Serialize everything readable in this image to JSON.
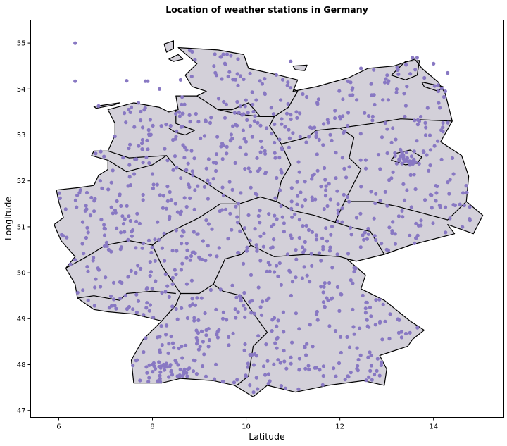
{
  "chart_data": {
    "type": "scatter",
    "title": "Location of weather stations in Germany",
    "xlabel": "Latitude",
    "ylabel": "Longitude",
    "xlim": [
      5.4,
      15.5
    ],
    "ylim": [
      46.85,
      55.5
    ],
    "xticks": [
      6,
      8,
      10,
      12,
      14
    ],
    "yticks": [
      47,
      48,
      49,
      50,
      51,
      52,
      53,
      54,
      55
    ],
    "grid": false,
    "point_color": "#8878c3",
    "land_color": "#d3d0d9",
    "border_color": "#000000",
    "country_outline": [
      [
        5.9,
        51.05
      ],
      [
        6.1,
        51.2
      ],
      [
        6.0,
        51.55
      ],
      [
        5.95,
        51.8
      ],
      [
        6.4,
        51.85
      ],
      [
        6.75,
        51.9
      ],
      [
        6.85,
        52.12
      ],
      [
        7.05,
        52.25
      ],
      [
        7.05,
        52.45
      ],
      [
        6.7,
        52.55
      ],
      [
        6.75,
        52.65
      ],
      [
        7.05,
        52.65
      ],
      [
        7.2,
        53.0
      ],
      [
        7.2,
        53.25
      ],
      [
        7.05,
        53.55
      ],
      [
        7.6,
        53.7
      ],
      [
        8.15,
        53.6
      ],
      [
        8.35,
        53.5
      ],
      [
        8.55,
        53.55
      ],
      [
        8.5,
        53.85
      ],
      [
        8.95,
        53.85
      ],
      [
        9.15,
        53.95
      ],
      [
        8.85,
        54.05
      ],
      [
        8.7,
        54.3
      ],
      [
        8.95,
        54.55
      ],
      [
        8.55,
        54.9
      ],
      [
        9.4,
        54.85
      ],
      [
        9.95,
        54.75
      ],
      [
        10.05,
        54.45
      ],
      [
        10.7,
        54.3
      ],
      [
        11.1,
        54.2
      ],
      [
        11.0,
        53.95
      ],
      [
        11.5,
        54.05
      ],
      [
        12.2,
        54.25
      ],
      [
        12.6,
        54.45
      ],
      [
        13.15,
        54.5
      ],
      [
        13.6,
        54.65
      ],
      [
        13.75,
        54.45
      ],
      [
        14.1,
        54.15
      ],
      [
        14.25,
        53.9
      ],
      [
        14.4,
        53.3
      ],
      [
        14.15,
        52.85
      ],
      [
        14.6,
        52.55
      ],
      [
        14.75,
        52.1
      ],
      [
        14.7,
        51.55
      ],
      [
        15.05,
        51.25
      ],
      [
        14.85,
        50.85
      ],
      [
        14.3,
        51.05
      ],
      [
        14.45,
        50.85
      ],
      [
        13.5,
        50.6
      ],
      [
        12.95,
        50.4
      ],
      [
        12.35,
        50.25
      ],
      [
        12.15,
        50.3
      ],
      [
        12.55,
        49.95
      ],
      [
        12.45,
        49.65
      ],
      [
        12.95,
        49.4
      ],
      [
        13.5,
        48.95
      ],
      [
        13.8,
        48.75
      ],
      [
        13.55,
        48.55
      ],
      [
        13.45,
        48.4
      ],
      [
        12.85,
        48.2
      ],
      [
        13.0,
        47.9
      ],
      [
        12.95,
        47.55
      ],
      [
        12.5,
        47.65
      ],
      [
        11.75,
        47.55
      ],
      [
        11.05,
        47.4
      ],
      [
        10.45,
        47.55
      ],
      [
        10.15,
        47.3
      ],
      [
        9.75,
        47.55
      ],
      [
        9.3,
        47.65
      ],
      [
        8.6,
        47.7
      ],
      [
        8.2,
        47.6
      ],
      [
        7.6,
        47.6
      ],
      [
        7.55,
        48.1
      ],
      [
        7.8,
        48.55
      ],
      [
        8.2,
        48.95
      ],
      [
        7.6,
        49.1
      ],
      [
        7.05,
        49.15
      ],
      [
        6.75,
        49.2
      ],
      [
        6.4,
        49.45
      ],
      [
        6.35,
        49.75
      ],
      [
        6.15,
        50.1
      ],
      [
        6.35,
        50.35
      ],
      [
        6.05,
        50.7
      ],
      [
        5.9,
        51.05
      ]
    ],
    "internal_borders": [
      [
        [
          6.4,
          49.45
        ],
        [
          6.75,
          49.5
        ],
        [
          7.3,
          49.4
        ],
        [
          7.45,
          49.55
        ],
        [
          8.0,
          49.6
        ],
        [
          8.5,
          49.55
        ]
      ],
      [
        [
          8.2,
          48.95
        ],
        [
          8.5,
          49.3
        ],
        [
          8.6,
          49.55
        ]
      ],
      [
        [
          8.6,
          49.55
        ],
        [
          9.0,
          49.55
        ],
        [
          9.3,
          49.75
        ],
        [
          9.5,
          49.6
        ],
        [
          9.9,
          49.5
        ],
        [
          10.2,
          49.05
        ],
        [
          10.45,
          48.7
        ],
        [
          10.15,
          48.4
        ],
        [
          10.05,
          47.75
        ],
        [
          9.8,
          47.55
        ]
      ],
      [
        [
          6.15,
          50.1
        ],
        [
          6.6,
          50.35
        ],
        [
          7.0,
          50.6
        ],
        [
          7.5,
          50.7
        ],
        [
          8.0,
          50.6
        ],
        [
          8.3,
          50.85
        ]
      ],
      [
        [
          8.0,
          50.6
        ],
        [
          8.2,
          50.15
        ],
        [
          8.6,
          49.55
        ]
      ],
      [
        [
          8.3,
          50.85
        ],
        [
          8.7,
          51.05
        ],
        [
          9.0,
          51.2
        ],
        [
          9.45,
          51.5
        ],
        [
          9.85,
          51.5
        ]
      ],
      [
        [
          9.85,
          51.5
        ],
        [
          9.85,
          51.1
        ],
        [
          10.1,
          50.6
        ],
        [
          9.9,
          50.4
        ],
        [
          9.55,
          50.3
        ],
        [
          9.3,
          49.75
        ]
      ],
      [
        [
          7.05,
          52.45
        ],
        [
          7.45,
          52.2
        ],
        [
          8.0,
          52.35
        ],
        [
          8.3,
          52.55
        ],
        [
          8.5,
          52.3
        ],
        [
          9.0,
          52.05
        ],
        [
          9.45,
          51.75
        ],
        [
          9.85,
          51.5
        ]
      ],
      [
        [
          10.1,
          50.6
        ],
        [
          10.6,
          50.35
        ],
        [
          11.3,
          50.4
        ],
        [
          12.0,
          50.35
        ],
        [
          12.35,
          50.25
        ]
      ],
      [
        [
          9.85,
          51.5
        ],
        [
          10.3,
          51.65
        ],
        [
          10.65,
          51.55
        ],
        [
          11.0,
          51.35
        ],
        [
          11.45,
          51.25
        ],
        [
          11.9,
          51.1
        ],
        [
          12.2,
          51.0
        ],
        [
          12.65,
          50.9
        ],
        [
          12.95,
          50.4
        ]
      ],
      [
        [
          10.65,
          51.55
        ],
        [
          10.75,
          52.0
        ],
        [
          10.95,
          52.35
        ],
        [
          10.75,
          52.8
        ],
        [
          11.3,
          52.95
        ],
        [
          11.5,
          53.1
        ],
        [
          12.0,
          53.15
        ],
        [
          12.3,
          52.95
        ],
        [
          12.2,
          52.5
        ],
        [
          12.45,
          52.25
        ],
        [
          12.25,
          51.85
        ],
        [
          12.1,
          51.55
        ],
        [
          11.9,
          51.1
        ]
      ],
      [
        [
          12.1,
          51.55
        ],
        [
          12.7,
          51.55
        ],
        [
          13.2,
          51.45
        ],
        [
          14.3,
          51.15
        ],
        [
          14.7,
          51.55
        ]
      ],
      [
        [
          12.0,
          53.15
        ],
        [
          12.7,
          53.25
        ],
        [
          13.3,
          53.35
        ],
        [
          14.4,
          53.3
        ]
      ],
      [
        [
          10.75,
          52.8
        ],
        [
          10.5,
          53.2
        ],
        [
          10.6,
          53.4
        ],
        [
          10.9,
          53.6
        ],
        [
          11.1,
          53.95
        ],
        [
          11.0,
          54.0
        ]
      ],
      [
        [
          8.95,
          53.85
        ],
        [
          9.4,
          53.55
        ],
        [
          9.85,
          53.45
        ],
        [
          10.3,
          53.4
        ],
        [
          10.6,
          53.4
        ]
      ],
      [
        [
          9.4,
          53.55
        ],
        [
          9.7,
          53.55
        ],
        [
          10.05,
          53.7
        ],
        [
          10.3,
          53.4
        ]
      ],
      [
        [
          8.5,
          53.55
        ],
        [
          8.5,
          53.25
        ],
        [
          8.9,
          53.1
        ],
        [
          8.7,
          53.0
        ],
        [
          8.5,
          53.05
        ],
        [
          8.35,
          53.15
        ]
      ],
      [
        [
          7.05,
          52.65
        ],
        [
          7.5,
          52.5
        ],
        [
          8.3,
          52.55
        ]
      ]
    ],
    "berlin_outline": [
      [
        13.1,
        52.45
      ],
      [
        13.2,
        52.6
      ],
      [
        13.5,
        52.67
      ],
      [
        13.75,
        52.52
      ],
      [
        13.65,
        52.38
      ],
      [
        13.4,
        52.35
      ],
      [
        13.1,
        52.45
      ]
    ],
    "islands": [
      [
        [
          8.25,
          54.98
        ],
        [
          8.45,
          55.05
        ],
        [
          8.45,
          54.88
        ],
        [
          8.3,
          54.8
        ],
        [
          8.25,
          54.98
        ]
      ],
      [
        [
          8.35,
          54.65
        ],
        [
          8.55,
          54.75
        ],
        [
          8.65,
          54.65
        ],
        [
          8.45,
          54.6
        ],
        [
          8.35,
          54.65
        ]
      ],
      [
        [
          11.0,
          54.5
        ],
        [
          11.3,
          54.52
        ],
        [
          11.25,
          54.4
        ],
        [
          11.05,
          54.42
        ],
        [
          11.0,
          54.5
        ]
      ],
      [
        [
          13.1,
          54.3
        ],
        [
          13.4,
          54.6
        ],
        [
          13.7,
          54.62
        ],
        [
          13.65,
          54.3
        ],
        [
          13.4,
          54.2
        ],
        [
          13.1,
          54.3
        ]
      ],
      [
        [
          13.75,
          54.15
        ],
        [
          14.2,
          54.05
        ],
        [
          14.1,
          53.95
        ],
        [
          13.8,
          54.05
        ],
        [
          13.75,
          54.15
        ]
      ],
      [
        [
          6.75,
          53.62
        ],
        [
          7.3,
          53.7
        ],
        [
          7.2,
          53.66
        ],
        [
          6.8,
          53.58
        ],
        [
          6.75,
          53.62
        ]
      ]
    ],
    "stations": [
      [
        6.35,
        55.0
      ],
      [
        6.35,
        54.17
      ],
      [
        7.45,
        54.18
      ],
      [
        7.85,
        54.17
      ],
      [
        7.9,
        54.17
      ],
      [
        8.6,
        54.2
      ],
      [
        8.15,
        54.0
      ],
      [
        7.7,
        53.7
      ],
      [
        6.85,
        53.63
      ],
      [
        10.95,
        54.6
      ],
      [
        12.45,
        54.45
      ],
      [
        13.55,
        54.68
      ],
      [
        13.65,
        54.68
      ],
      [
        14.0,
        54.55
      ],
      [
        14.3,
        54.35
      ],
      [
        14.25,
        53.95
      ]
    ]
  }
}
